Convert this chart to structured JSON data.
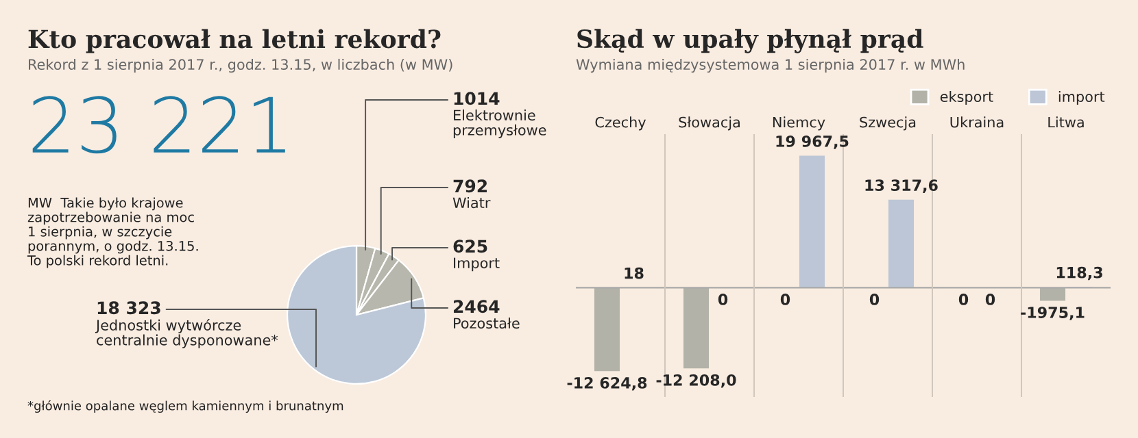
{
  "chart_data": [
    {
      "type": "pie",
      "title": "Kto pracował na letni rekord?",
      "subtitle": "Rekord z 1 sierpnia 2017 r., godz. 13.15, w liczbach (w MW)",
      "categories": [
        "Elektrownie\nprzemysłowe",
        "Wiatr",
        "Import",
        "Pozostałe",
        "Jednostki wytwórcze\ncentralnie dysponowane*"
      ],
      "values": [
        1014,
        792,
        625,
        2464,
        18323
      ],
      "value_labels": [
        "1014",
        "792",
        "625",
        "2464",
        "18 323"
      ],
      "colors": [
        "#b8b7ad",
        "#b8b7ad",
        "#b8b7ad",
        "#b8b7ad",
        "#bcc8d8"
      ],
      "annotations": [
        "23 221",
        "MW  Takie było krajowe\nzapotrzebowanie na moc\n1 sierpnia, w szczycie\nporannym, o godz. 13.15.\nTo polski rekord letni.",
        "*głównie opalane węglem kamiennym i brunatnym"
      ]
    },
    {
      "type": "bar",
      "title": "Skąd w upały płynął prąd",
      "subtitle": "Wymiana międzysystemowa 1 sierpnia 2017 r. w MWh",
      "categories": [
        "Czechy",
        "Słowacja",
        "Niemcy",
        "Szwecja",
        "Ukraina",
        "Litwa"
      ],
      "series": [
        {
          "name": "eksport",
          "color": "#b3b2a8",
          "values": [
            -12624.8,
            -12208.0,
            0,
            0,
            0,
            -1975.1
          ],
          "value_labels": [
            "-12 624,8",
            "-12 208,0",
            "0",
            "0",
            "0",
            "-1975,1"
          ]
        },
        {
          "name": "import",
          "color": "#bcc6d6",
          "values": [
            18,
            0,
            19967.5,
            13317.6,
            0,
            118.3
          ],
          "value_labels": [
            "18",
            "0",
            "19 967,5",
            "13 317,6",
            "0",
            "118,3"
          ]
        }
      ],
      "legend": "top right"
    }
  ]
}
